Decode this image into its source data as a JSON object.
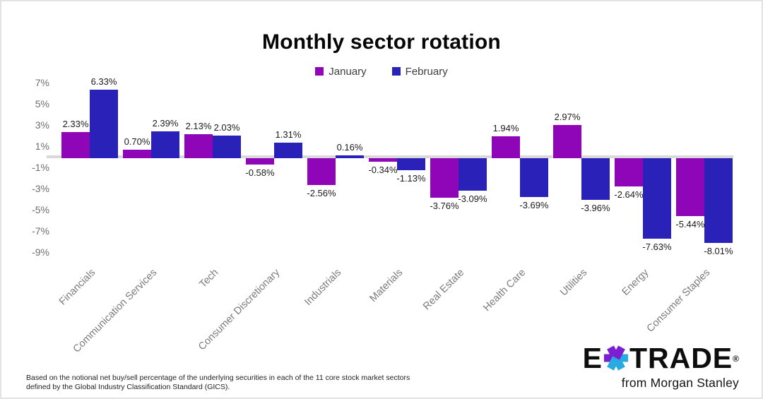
{
  "page": {
    "background": "#ffffff",
    "frame_border_color": "#e3e3e3",
    "zero_line_color": "#d9d9d9"
  },
  "chart_data": {
    "type": "bar",
    "title": "Monthly sector rotation",
    "xlabel": "",
    "ylabel": "",
    "categories": [
      "Financials",
      "Communication Services",
      "Tech",
      "Consumer Discretionary",
      "Industrials",
      "Materials",
      "Real Estate",
      "Health Care",
      "Utilities",
      "Energy",
      "Consumer Staples"
    ],
    "series": [
      {
        "name": "January",
        "color": "#8F06B8",
        "values": [
          2.33,
          0.7,
          2.13,
          -0.58,
          -2.56,
          -0.34,
          -3.76,
          1.94,
          2.97,
          -2.64,
          -5.44
        ]
      },
      {
        "name": "February",
        "color": "#2A21B8",
        "values": [
          6.33,
          2.39,
          2.03,
          1.31,
          0.16,
          -1.13,
          -3.09,
          -3.69,
          -3.96,
          -7.63,
          -8.01
        ]
      }
    ],
    "y_ticks": [
      7,
      5,
      3,
      1,
      -1,
      -3,
      -5,
      -7,
      -9
    ],
    "y_tick_suffix": "%",
    "ylim": [
      -9.5,
      7.5
    ],
    "grid": false,
    "legend_position": "top",
    "value_labels": true,
    "value_label_suffix": "%"
  },
  "footnote": "Based on the notional net buy/sell percentage of the underlying securities in each of the 11 core stock market sectors defined by the Global Industry Classification Standard (GICS).",
  "branding": {
    "logo_e": "E",
    "logo_trade": "TRADE",
    "logo_reg": "®",
    "tagline": "from Morgan Stanley",
    "star_color_left": "#7B1FD1",
    "star_color_right": "#29ABE2"
  }
}
